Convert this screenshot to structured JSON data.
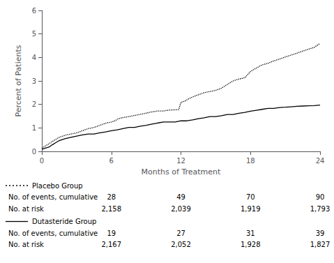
{
  "chart_data": {
    "type": "line",
    "xlabel": "Months of Treatment",
    "ylabel": "Percent of Patients",
    "xlim": [
      0,
      24
    ],
    "ylim": [
      0,
      6
    ],
    "xticks": [
      0,
      6,
      12,
      18,
      24
    ],
    "yticks": [
      0,
      1,
      2,
      3,
      4,
      5,
      6
    ],
    "grid": false,
    "series": [
      {
        "name": "Placebo Group",
        "color": "#000000",
        "line_style": "dotted",
        "x": [
          0,
          0.3,
          0.6,
          0.9,
          1.2,
          1.5,
          1.8,
          2.1,
          2.5,
          3.0,
          3.5,
          4.0,
          4.5,
          5.0,
          5.5,
          6.0,
          6.3,
          6.6,
          7.0,
          7.5,
          8.0,
          8.5,
          9.0,
          9.5,
          10.0,
          10.5,
          11.0,
          11.5,
          11.8,
          12.0,
          12.3,
          12.6,
          13.0,
          13.5,
          14.0,
          14.5,
          15.0,
          15.5,
          16.0,
          16.5,
          17.0,
          17.5,
          18.0,
          18.5,
          19.0,
          19.5,
          20.0,
          20.5,
          21.0,
          21.5,
          22.0,
          22.5,
          23.0,
          23.5,
          24.0
        ],
        "values": [
          0.14,
          0.23,
          0.32,
          0.42,
          0.51,
          0.6,
          0.65,
          0.7,
          0.74,
          0.79,
          0.88,
          0.97,
          1.02,
          1.11,
          1.2,
          1.25,
          1.3,
          1.39,
          1.44,
          1.48,
          1.53,
          1.58,
          1.63,
          1.68,
          1.72,
          1.72,
          1.76,
          1.77,
          1.77,
          2.09,
          2.13,
          2.22,
          2.32,
          2.41,
          2.5,
          2.55,
          2.6,
          2.69,
          2.85,
          3.0,
          3.08,
          3.13,
          3.4,
          3.55,
          3.68,
          3.75,
          3.85,
          3.93,
          4.02,
          4.1,
          4.18,
          4.27,
          4.35,
          4.43,
          4.6
        ]
      },
      {
        "name": "Dutasteride Group",
        "color": "#000000",
        "line_style": "solid",
        "x": [
          0,
          0.3,
          0.6,
          0.9,
          1.2,
          1.5,
          1.8,
          2.1,
          2.5,
          3.0,
          3.5,
          4.0,
          4.5,
          5.0,
          5.5,
          6.0,
          6.5,
          7.0,
          7.5,
          8.0,
          8.5,
          9.0,
          9.5,
          10.0,
          10.5,
          11.0,
          11.5,
          12.0,
          12.5,
          13.0,
          13.5,
          14.0,
          14.5,
          15.0,
          15.5,
          16.0,
          16.5,
          17.0,
          17.5,
          18.0,
          18.5,
          19.0,
          19.5,
          20.0,
          20.5,
          21.0,
          21.5,
          22.0,
          22.5,
          23.0,
          23.5,
          24.0
        ],
        "values": [
          0.09,
          0.14,
          0.18,
          0.28,
          0.37,
          0.46,
          0.51,
          0.55,
          0.6,
          0.65,
          0.7,
          0.74,
          0.74,
          0.79,
          0.83,
          0.88,
          0.92,
          0.97,
          1.02,
          1.02,
          1.07,
          1.11,
          1.16,
          1.21,
          1.25,
          1.25,
          1.25,
          1.3,
          1.3,
          1.34,
          1.39,
          1.43,
          1.48,
          1.48,
          1.52,
          1.57,
          1.57,
          1.62,
          1.66,
          1.71,
          1.75,
          1.79,
          1.83,
          1.83,
          1.87,
          1.88,
          1.9,
          1.92,
          1.93,
          1.94,
          1.95,
          1.97
        ]
      }
    ],
    "table": {
      "x": [
        6,
        12,
        18,
        24
      ],
      "groups": [
        {
          "name": "Placebo Group",
          "rows": [
            {
              "label": "No. of events, cumulative",
              "values": [
                "28",
                "49",
                "70",
                "90"
              ]
            },
            {
              "label": "No. at risk",
              "values": [
                "2,158",
                "2,039",
                "1,919",
                "1,793"
              ]
            }
          ]
        },
        {
          "name": "Dutasteride Group",
          "rows": [
            {
              "label": "No. of events, cumulative",
              "values": [
                "19",
                "27",
                "31",
                "39"
              ]
            },
            {
              "label": "No. at risk",
              "values": [
                "2,167",
                "2,052",
                "1,928",
                "1,827"
              ]
            }
          ]
        }
      ]
    }
  }
}
